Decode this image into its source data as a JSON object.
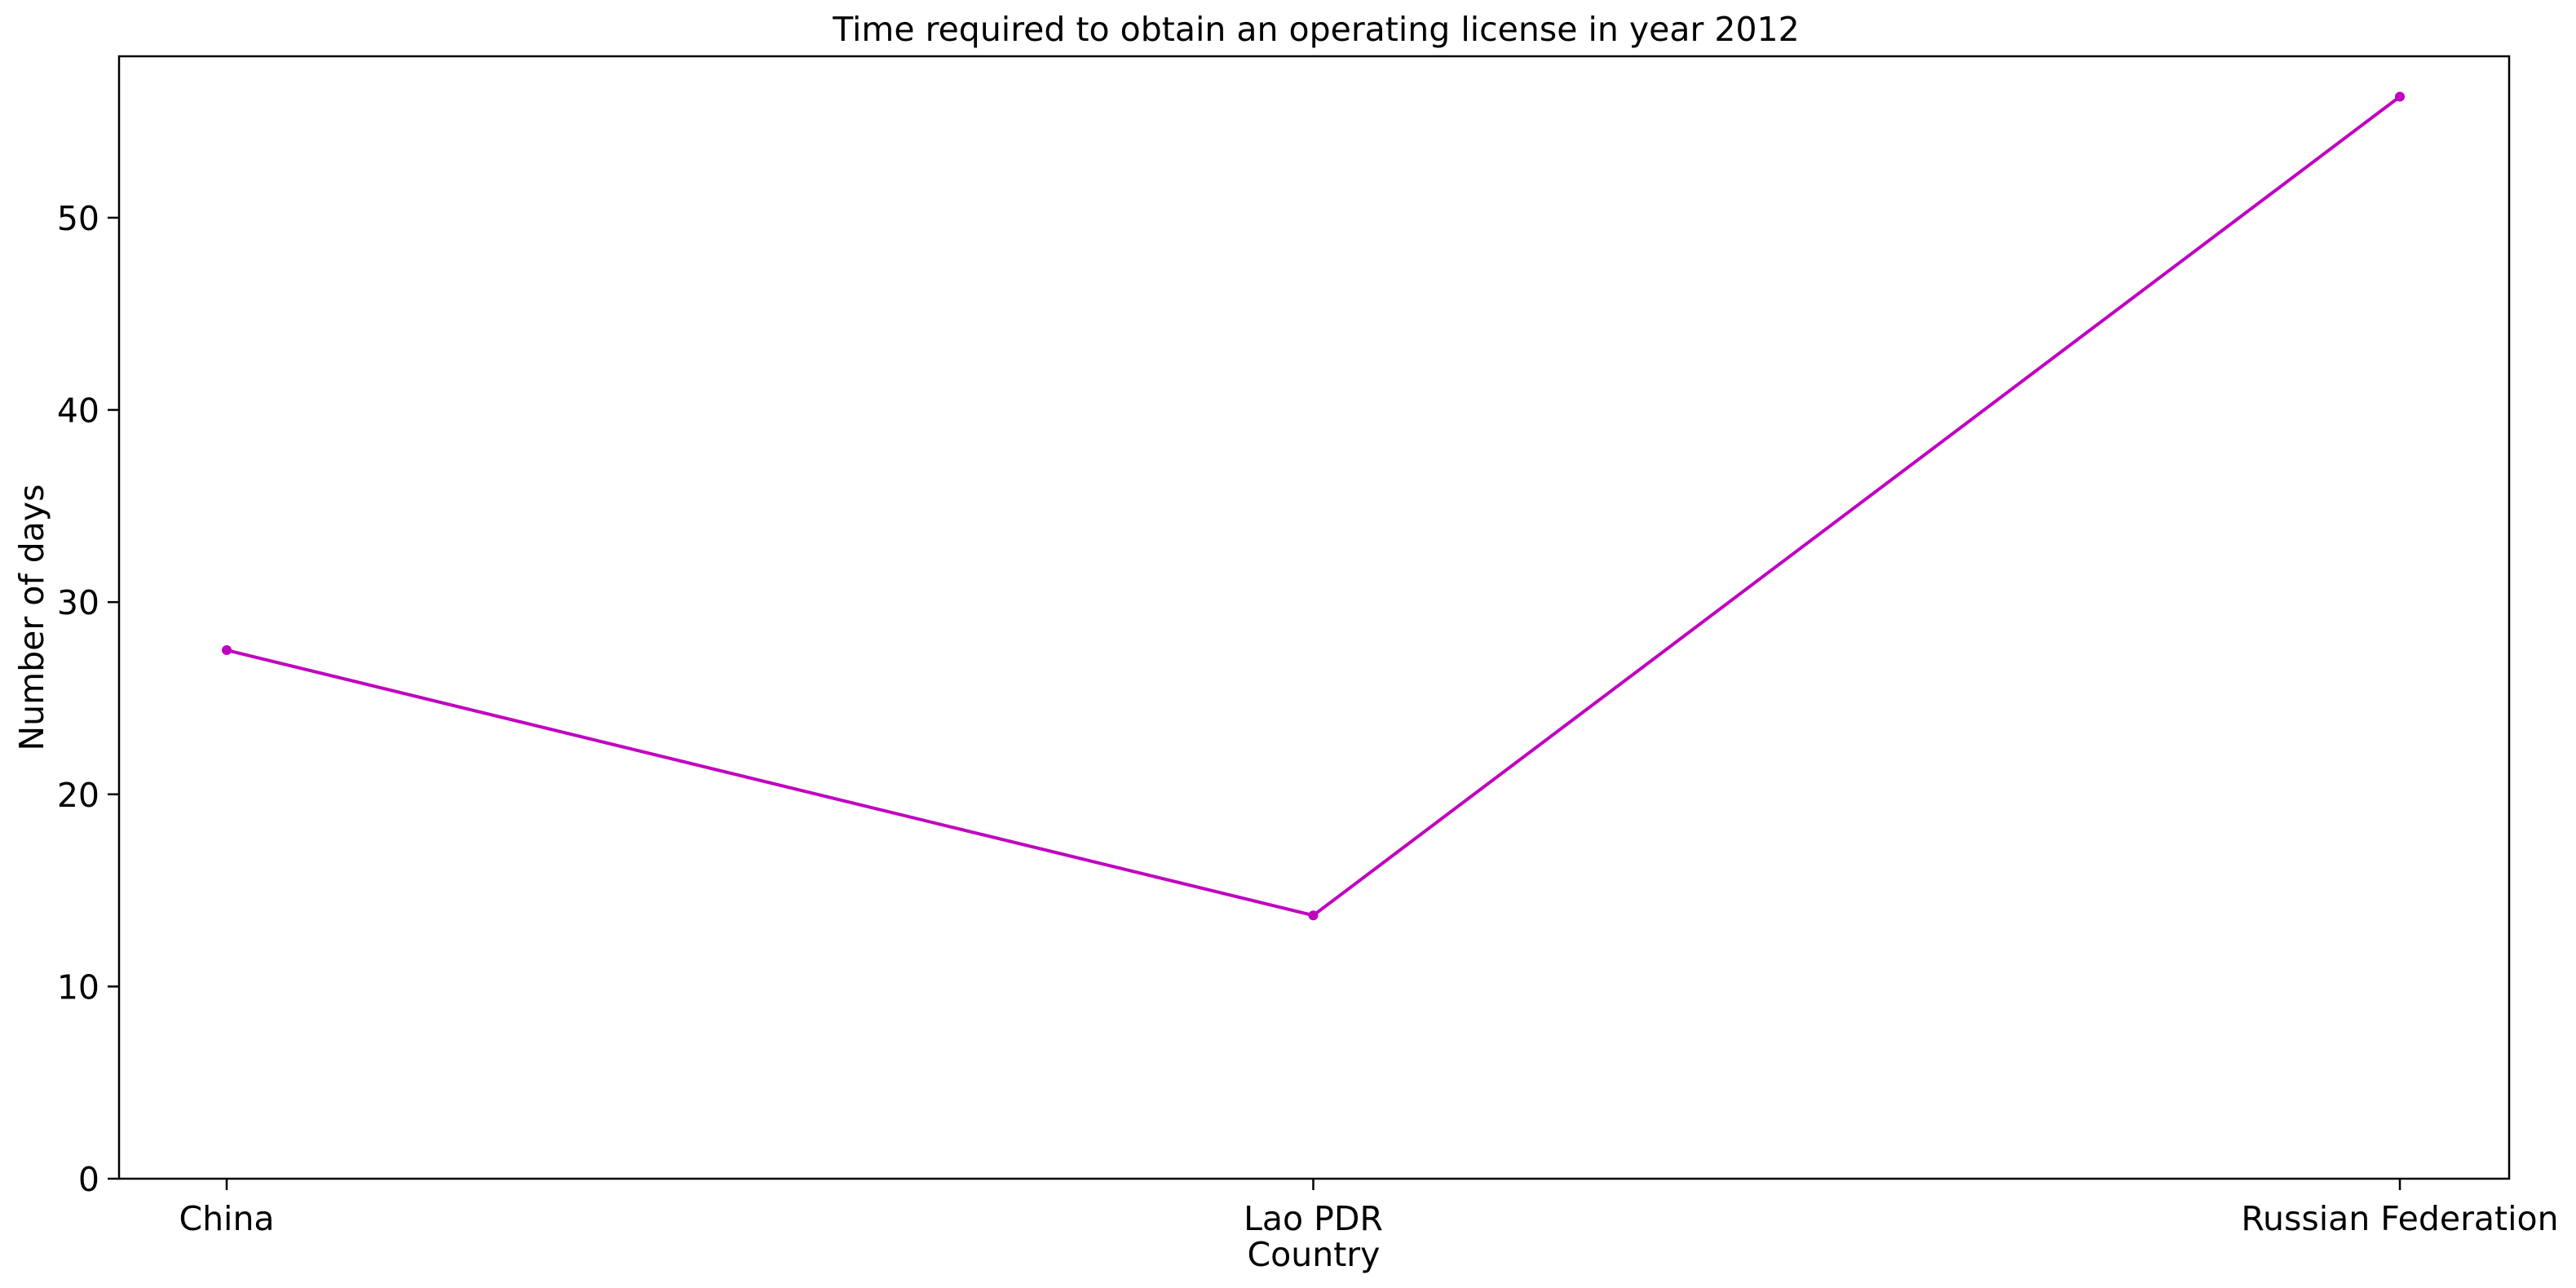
{
  "chart_data": {
    "type": "line",
    "title": "Time required to obtain an operating license in year 2012",
    "xlabel": "Country",
    "ylabel": "Number of days",
    "categories": [
      "China",
      "Lao PDR",
      "Russian Federation"
    ],
    "series": [
      {
        "values": [
          27.5,
          13.7,
          56.3
        ],
        "color": "#c000c0"
      }
    ],
    "ylim": [
      0,
      58.4
    ],
    "yticks": [
      0,
      10,
      20,
      30,
      40,
      50
    ],
    "grid": false,
    "legend": "none"
  }
}
